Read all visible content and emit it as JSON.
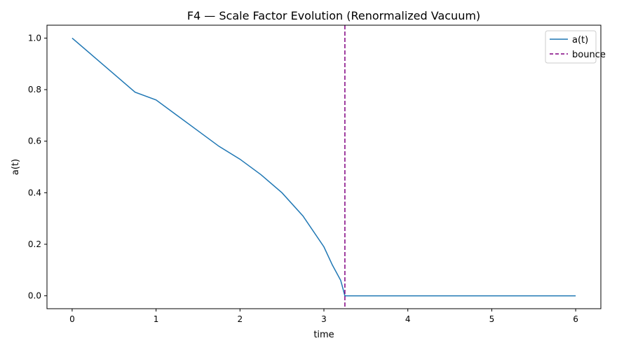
{
  "chart_data": {
    "type": "line",
    "title": "F4 — Scale Factor Evolution (Renormalized Vacuum)",
    "xlabel": "time",
    "ylabel": "a(t)",
    "xlim": [
      -0.3,
      6.3
    ],
    "ylim": [
      -0.05,
      1.05
    ],
    "xticks": [
      0,
      1,
      2,
      3,
      4,
      5,
      6
    ],
    "yticks": [
      0.0,
      0.2,
      0.4,
      0.6,
      0.8,
      1.0
    ],
    "xtick_labels": [
      "0",
      "1",
      "2",
      "3",
      "4",
      "5",
      "6"
    ],
    "ytick_labels": [
      "0.0",
      "0.2",
      "0.4",
      "0.6",
      "0.8",
      "1.0"
    ],
    "grid": false,
    "legend_position": "top-right",
    "series": [
      {
        "name": "a(t)",
        "color": "#1f77b4",
        "style": "solid",
        "x": [
          0,
          0.25,
          0.5,
          0.75,
          1.0,
          1.25,
          1.5,
          1.75,
          2.0,
          2.25,
          2.5,
          2.75,
          3.0,
          3.1,
          3.2,
          3.25,
          3.3,
          3.5,
          4.0,
          4.5,
          5.0,
          5.5,
          6.0
        ],
        "y": [
          1.0,
          0.93,
          0.86,
          0.79,
          0.76,
          0.7,
          0.64,
          0.58,
          0.53,
          0.47,
          0.4,
          0.31,
          0.19,
          0.12,
          0.06,
          0.0,
          0.0,
          0.0,
          0.0,
          0.0,
          0.0,
          0.0,
          0.0
        ]
      },
      {
        "name": "bounce",
        "color": "#800080",
        "style": "dashed",
        "vline": 3.25
      }
    ]
  }
}
